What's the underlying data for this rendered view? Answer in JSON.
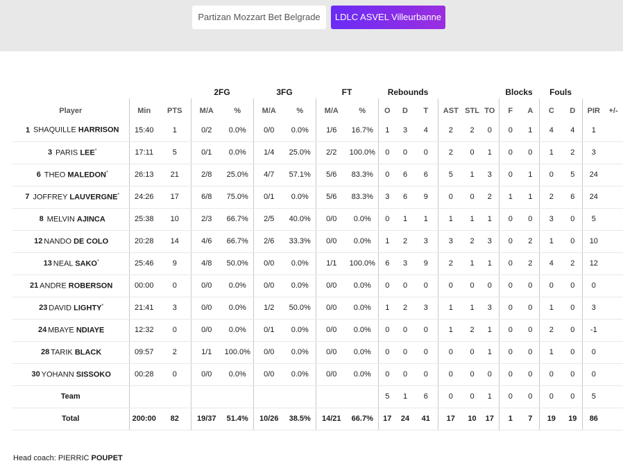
{
  "tabs": [
    {
      "label": "Partizan Mozzart Bet Belgrade",
      "active": false
    },
    {
      "label": "LDLC ASVEL Villeurbanne",
      "active": true
    }
  ],
  "groups": {
    "fg2": "2FG",
    "fg3": "3FG",
    "ft": "FT",
    "rebounds": "Rebounds",
    "blocks": "Blocks",
    "fouls": "Fouls"
  },
  "columns": {
    "player": "Player",
    "min": "Min",
    "pts": "PTS",
    "fg2_ma": "M/A",
    "fg2_pct": "%",
    "fg3_ma": "M/A",
    "fg3_pct": "%",
    "ft_ma": "M/A",
    "ft_pct": "%",
    "reb_o": "O",
    "reb_d": "D",
    "reb_t": "T",
    "ast": "AST",
    "stl": "STL",
    "to": "TO",
    "blk_f": "F",
    "blk_a": "A",
    "foul_c": "C",
    "foul_d": "D",
    "pir": "PIR",
    "pm": "+/-"
  },
  "players": [
    {
      "num": "1",
      "first": "SHAQUILLE",
      "last": "HARRISON",
      "starter": "",
      "min": "15:40",
      "pts": "1",
      "fg2": "0/2",
      "fg2p": "0.0%",
      "fg3": "0/0",
      "fg3p": "0.0%",
      "ft": "1/6",
      "ftp": "16.7%",
      "o": "1",
      "d": "3",
      "t": "4",
      "ast": "2",
      "stl": "2",
      "to": "0",
      "bf": "0",
      "ba": "1",
      "fc": "4",
      "fd": "4",
      "pir": "1",
      "pm": ""
    },
    {
      "num": "3",
      "first": "PARIS",
      "last": "LEE",
      "starter": "*",
      "min": "17:11",
      "pts": "5",
      "fg2": "0/1",
      "fg2p": "0.0%",
      "fg3": "1/4",
      "fg3p": "25.0%",
      "ft": "2/2",
      "ftp": "100.0%",
      "o": "0",
      "d": "0",
      "t": "0",
      "ast": "2",
      "stl": "0",
      "to": "1",
      "bf": "0",
      "ba": "0",
      "fc": "1",
      "fd": "2",
      "pir": "3",
      "pm": ""
    },
    {
      "num": "6",
      "first": "THEO",
      "last": "MALEDON",
      "starter": "*",
      "min": "26:13",
      "pts": "21",
      "fg2": "2/8",
      "fg2p": "25.0%",
      "fg3": "4/7",
      "fg3p": "57.1%",
      "ft": "5/6",
      "ftp": "83.3%",
      "o": "0",
      "d": "6",
      "t": "6",
      "ast": "5",
      "stl": "1",
      "to": "3",
      "bf": "0",
      "ba": "1",
      "fc": "0",
      "fd": "5",
      "pir": "24",
      "pm": ""
    },
    {
      "num": "7",
      "first": "JOFFREY",
      "last": "LAUVERGNE",
      "starter": "*",
      "min": "24:26",
      "pts": "17",
      "fg2": "6/8",
      "fg2p": "75.0%",
      "fg3": "0/1",
      "fg3p": "0.0%",
      "ft": "5/6",
      "ftp": "83.3%",
      "o": "3",
      "d": "6",
      "t": "9",
      "ast": "0",
      "stl": "0",
      "to": "2",
      "bf": "1",
      "ba": "1",
      "fc": "2",
      "fd": "6",
      "pir": "24",
      "pm": ""
    },
    {
      "num": "8",
      "first": "MELVIN",
      "last": "AJINCA",
      "starter": "",
      "min": "25:38",
      "pts": "10",
      "fg2": "2/3",
      "fg2p": "66.7%",
      "fg3": "2/5",
      "fg3p": "40.0%",
      "ft": "0/0",
      "ftp": "0.0%",
      "o": "0",
      "d": "1",
      "t": "1",
      "ast": "1",
      "stl": "1",
      "to": "1",
      "bf": "0",
      "ba": "0",
      "fc": "3",
      "fd": "0",
      "pir": "5",
      "pm": ""
    },
    {
      "num": "12",
      "first": "NANDO",
      "last": "DE COLO",
      "starter": "",
      "min": "20:28",
      "pts": "14",
      "fg2": "4/6",
      "fg2p": "66.7%",
      "fg3": "2/6",
      "fg3p": "33.3%",
      "ft": "0/0",
      "ftp": "0.0%",
      "o": "1",
      "d": "2",
      "t": "3",
      "ast": "3",
      "stl": "2",
      "to": "3",
      "bf": "0",
      "ba": "2",
      "fc": "1",
      "fd": "0",
      "pir": "10",
      "pm": ""
    },
    {
      "num": "13",
      "first": "NEAL",
      "last": "SAKO",
      "starter": "*",
      "min": "25:46",
      "pts": "9",
      "fg2": "4/8",
      "fg2p": "50.0%",
      "fg3": "0/0",
      "fg3p": "0.0%",
      "ft": "1/1",
      "ftp": "100.0%",
      "o": "6",
      "d": "3",
      "t": "9",
      "ast": "2",
      "stl": "1",
      "to": "1",
      "bf": "0",
      "ba": "2",
      "fc": "4",
      "fd": "2",
      "pir": "12",
      "pm": ""
    },
    {
      "num": "21",
      "first": "ANDRE",
      "last": "ROBERSON",
      "starter": "",
      "min": "00:00",
      "pts": "0",
      "fg2": "0/0",
      "fg2p": "0.0%",
      "fg3": "0/0",
      "fg3p": "0.0%",
      "ft": "0/0",
      "ftp": "0.0%",
      "o": "0",
      "d": "0",
      "t": "0",
      "ast": "0",
      "stl": "0",
      "to": "0",
      "bf": "0",
      "ba": "0",
      "fc": "0",
      "fd": "0",
      "pir": "0",
      "pm": ""
    },
    {
      "num": "23",
      "first": "DAVID",
      "last": "LIGHTY",
      "starter": "*",
      "min": "21:41",
      "pts": "3",
      "fg2": "0/0",
      "fg2p": "0.0%",
      "fg3": "1/2",
      "fg3p": "50.0%",
      "ft": "0/0",
      "ftp": "0.0%",
      "o": "1",
      "d": "2",
      "t": "3",
      "ast": "1",
      "stl": "1",
      "to": "3",
      "bf": "0",
      "ba": "0",
      "fc": "1",
      "fd": "0",
      "pir": "3",
      "pm": ""
    },
    {
      "num": "24",
      "first": "MBAYE",
      "last": "NDIAYE",
      "starter": "",
      "min": "12:32",
      "pts": "0",
      "fg2": "0/0",
      "fg2p": "0.0%",
      "fg3": "0/1",
      "fg3p": "0.0%",
      "ft": "0/0",
      "ftp": "0.0%",
      "o": "0",
      "d": "0",
      "t": "0",
      "ast": "1",
      "stl": "2",
      "to": "1",
      "bf": "0",
      "ba": "0",
      "fc": "2",
      "fd": "0",
      "pir": "-1",
      "pm": ""
    },
    {
      "num": "28",
      "first": "TARIK",
      "last": "BLACK",
      "starter": "",
      "min": "09:57",
      "pts": "2",
      "fg2": "1/1",
      "fg2p": "100.0%",
      "fg3": "0/0",
      "fg3p": "0.0%",
      "ft": "0/0",
      "ftp": "0.0%",
      "o": "0",
      "d": "0",
      "t": "0",
      "ast": "0",
      "stl": "0",
      "to": "1",
      "bf": "0",
      "ba": "0",
      "fc": "1",
      "fd": "0",
      "pir": "0",
      "pm": ""
    },
    {
      "num": "30",
      "first": "YOHANN",
      "last": "SISSOKO",
      "starter": "",
      "min": "00:28",
      "pts": "0",
      "fg2": "0/0",
      "fg2p": "0.0%",
      "fg3": "0/0",
      "fg3p": "0.0%",
      "ft": "0/0",
      "ftp": "0.0%",
      "o": "0",
      "d": "0",
      "t": "0",
      "ast": "0",
      "stl": "0",
      "to": "0",
      "bf": "0",
      "ba": "0",
      "fc": "0",
      "fd": "0",
      "pir": "0",
      "pm": ""
    }
  ],
  "team_row": {
    "label": "Team",
    "min": "",
    "pts": "",
    "fg2": "",
    "fg2p": "",
    "fg3": "",
    "fg3p": "",
    "ft": "",
    "ftp": "",
    "o": "5",
    "d": "1",
    "t": "6",
    "ast": "0",
    "stl": "0",
    "to": "1",
    "bf": "0",
    "ba": "0",
    "fc": "0",
    "fd": "0",
    "pir": "5",
    "pm": ""
  },
  "total_row": {
    "label": "Total",
    "min": "200:00",
    "pts": "82",
    "fg2": "19/37",
    "fg2p": "51.4%",
    "fg3": "10/26",
    "fg3p": "38.5%",
    "ft": "14/21",
    "ftp": "66.7%",
    "o": "17",
    "d": "24",
    "t": "41",
    "ast": "17",
    "stl": "10",
    "to": "17",
    "bf": "1",
    "ba": "7",
    "fc": "19",
    "fd": "19",
    "pir": "86",
    "pm": ""
  },
  "coach": {
    "label": "Head coach:",
    "first": "PIERRIC",
    "last": "POUPET"
  }
}
